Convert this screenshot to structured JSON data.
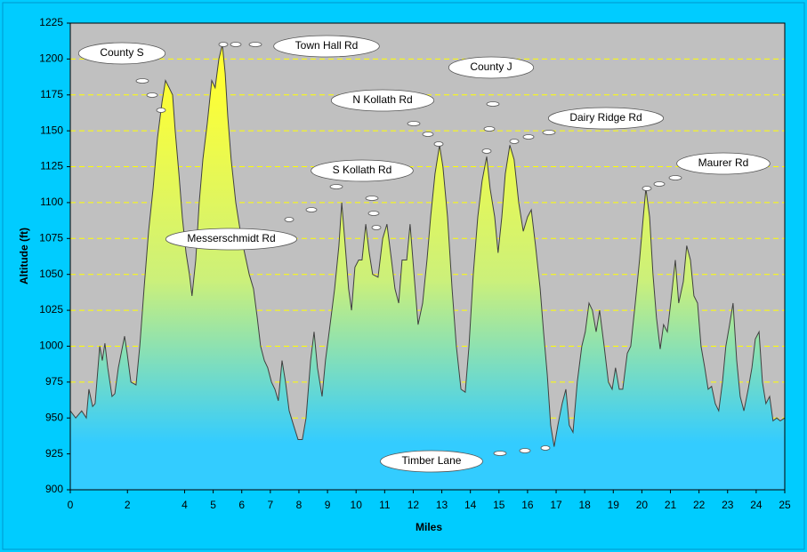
{
  "chart_data": {
    "type": "area",
    "xlabel": "Miles",
    "ylabel": "Altitude (ft)",
    "color": "#404040",
    "gradient": [
      "#ffff33",
      "#ccf07a",
      "#33ccff"
    ],
    "xlim": [
      0,
      25
    ],
    "ylim": [
      900,
      1225
    ],
    "xticks": [
      0,
      2,
      4,
      5,
      6,
      7,
      8,
      9,
      10,
      11,
      12,
      13,
      14,
      15,
      16,
      17,
      18,
      19,
      20,
      21,
      22,
      23,
      24,
      25
    ],
    "yticks": [
      900,
      925,
      950,
      975,
      1000,
      1025,
      1050,
      1075,
      1100,
      1125,
      1150,
      1175,
      1200,
      1225
    ],
    "grid": true,
    "annotations": [
      "County S",
      "Town Hall Rd",
      "County J",
      "N Kollath Rd",
      "Dairy Ridge Rd",
      "S Kollath Rd",
      "Maurer Rd",
      "Messerschmidt Rd",
      "Timber Lane"
    ],
    "x": [
      0,
      0.19,
      0.4,
      0.56,
      0.65,
      0.78,
      0.87,
      1.03,
      1.12,
      1.21,
      1.31,
      1.46,
      1.56,
      1.68,
      1.9,
      1.99,
      2.12,
      2.3,
      2.43,
      2.58,
      2.74,
      2.9,
      3.05,
      3.21,
      3.33,
      3.46,
      3.58,
      3.67,
      3.8,
      3.92,
      4.05,
      4.17,
      4.26,
      4.39,
      4.51,
      4.64,
      4.79,
      4.95,
      5.07,
      5.2,
      5.32,
      5.42,
      5.51,
      5.63,
      5.79,
      5.95,
      6.1,
      6.26,
      6.41,
      6.54,
      6.66,
      6.79,
      6.91,
      7.04,
      7.16,
      7.28,
      7.41,
      7.53,
      7.66,
      7.81,
      7.97,
      8.12,
      8.25,
      8.41,
      8.53,
      8.65,
      8.81,
      8.93,
      9.09,
      9.25,
      9.4,
      9.5,
      9.62,
      9.74,
      9.84,
      9.96,
      10.09,
      10.21,
      10.34,
      10.46,
      10.58,
      10.77,
      10.93,
      11.08,
      11.24,
      11.36,
      11.49,
      11.61,
      11.77,
      11.89,
      12.05,
      12.17,
      12.33,
      12.48,
      12.61,
      12.76,
      12.92,
      13.04,
      13.2,
      13.36,
      13.51,
      13.67,
      13.82,
      13.95,
      14.1,
      14.26,
      14.41,
      14.57,
      14.69,
      14.85,
      14.97,
      15.1,
      15.22,
      15.38,
      15.53,
      15.69,
      15.85,
      16.0,
      16.13,
      16.28,
      16.44,
      16.56,
      16.69,
      16.81,
      16.93,
      17.06,
      17.21,
      17.34,
      17.46,
      17.59,
      17.74,
      17.9,
      18.02,
      18.15,
      18.27,
      18.4,
      18.52,
      18.68,
      18.83,
      18.96,
      19.08,
      19.21,
      19.33,
      19.49,
      19.61,
      19.77,
      19.92,
      20.05,
      20.14,
      20.27,
      20.39,
      20.51,
      20.64,
      20.76,
      20.89,
      21.01,
      21.17,
      21.29,
      21.45,
      21.57,
      21.7,
      21.82,
      21.95,
      22.07,
      22.2,
      22.32,
      22.44,
      22.57,
      22.69,
      22.82,
      22.94,
      23.07,
      23.19,
      23.32,
      23.44,
      23.57,
      23.72,
      23.85,
      23.97,
      24.1,
      24.22,
      24.34,
      24.47,
      24.59,
      24.72,
      24.84,
      25.0
    ],
    "values": [
      955,
      950,
      955,
      950,
      970,
      958,
      960,
      1000,
      990,
      1002,
      985,
      965,
      967,
      985,
      1007,
      995,
      975,
      973,
      1000,
      1040,
      1080,
      1110,
      1145,
      1170,
      1185,
      1180,
      1175,
      1150,
      1120,
      1090,
      1065,
      1050,
      1035,
      1060,
      1100,
      1130,
      1155,
      1185,
      1180,
      1200,
      1210,
      1190,
      1160,
      1130,
      1100,
      1080,
      1065,
      1050,
      1040,
      1020,
      1000,
      990,
      985,
      975,
      970,
      962,
      990,
      975,
      955,
      945,
      935,
      935,
      950,
      990,
      1010,
      985,
      965,
      990,
      1015,
      1040,
      1070,
      1100,
      1070,
      1040,
      1025,
      1055,
      1060,
      1060,
      1085,
      1065,
      1050,
      1048,
      1075,
      1085,
      1060,
      1040,
      1030,
      1060,
      1060,
      1085,
      1045,
      1015,
      1030,
      1060,
      1090,
      1120,
      1140,
      1125,
      1090,
      1040,
      1000,
      970,
      968,
      1000,
      1050,
      1090,
      1115,
      1132,
      1110,
      1090,
      1065,
      1090,
      1120,
      1140,
      1130,
      1100,
      1080,
      1090,
      1095,
      1070,
      1040,
      1010,
      980,
      945,
      930,
      945,
      960,
      970,
      945,
      940,
      975,
      1000,
      1010,
      1030,
      1025,
      1010,
      1025,
      1000,
      975,
      970,
      985,
      970,
      970,
      995,
      1000,
      1030,
      1060,
      1090,
      1110,
      1090,
      1050,
      1020,
      998,
      1015,
      1010,
      1030,
      1060,
      1030,
      1045,
      1070,
      1060,
      1035,
      1030,
      1000,
      985,
      970,
      972,
      960,
      955,
      975,
      1000,
      1015,
      1030,
      990,
      965,
      955,
      970,
      985,
      1005,
      1010,
      975,
      960,
      965,
      948,
      950,
      948,
      950
    ]
  }
}
